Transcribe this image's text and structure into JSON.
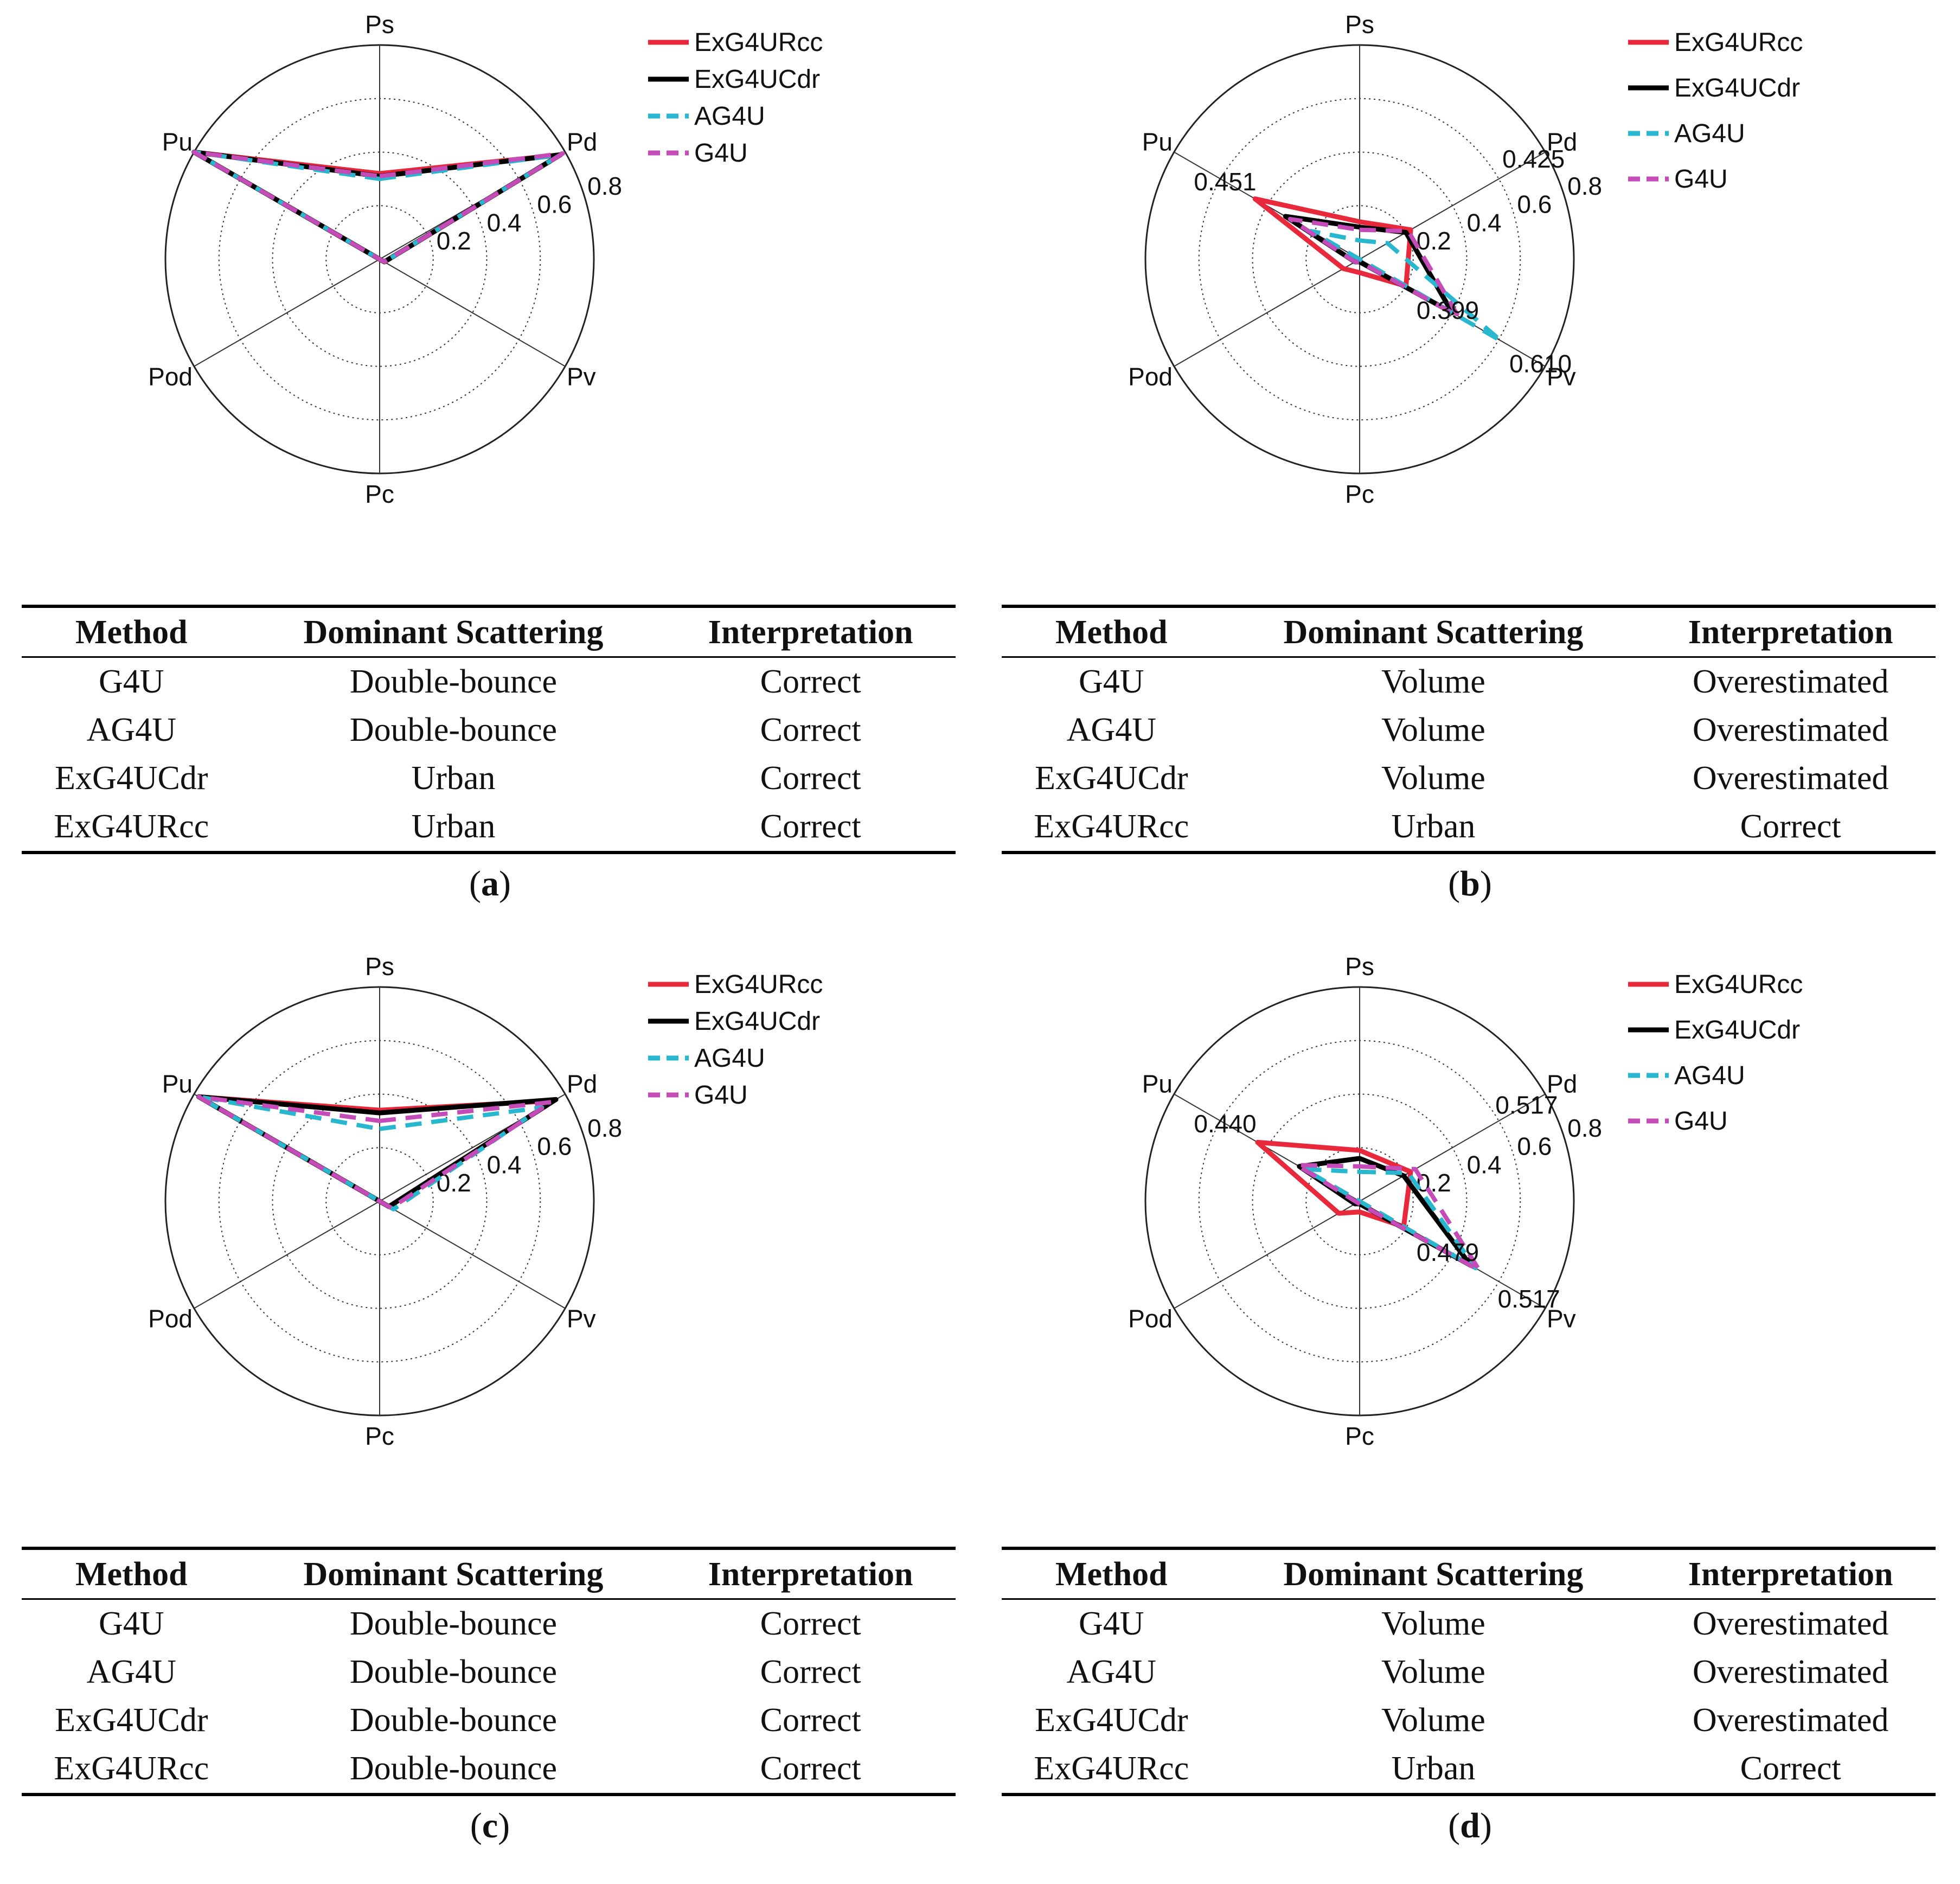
{
  "chart_data": [
    {
      "type": "radar",
      "axes": [
        "Ps",
        "Pd",
        "Pv",
        "Pc",
        "Pod",
        "Pu"
      ],
      "rlim": [
        0,
        0.8
      ],
      "rticks": [
        0.2,
        0.4,
        0.6,
        0.8
      ],
      "grid": true,
      "legend_position": "top-right",
      "series": [
        {
          "name": "ExG4URcc",
          "color": "#e8283b",
          "dash": "solid",
          "values": [
            0.32,
            0.78,
            0.02,
            0.0,
            0.0,
            0.8
          ]
        },
        {
          "name": "ExG4UCdr",
          "color": "#000000",
          "dash": "solid",
          "values": [
            0.31,
            0.78,
            0.02,
            0.0,
            0.0,
            0.8
          ]
        },
        {
          "name": "AG4U",
          "color": "#29b6cf",
          "dash": "dashed",
          "values": [
            0.3,
            0.78,
            0.02,
            0.0,
            0.0,
            0.8
          ]
        },
        {
          "name": "G4U",
          "color": "#c44bb8",
          "dash": "dashed",
          "values": [
            0.31,
            0.79,
            0.02,
            0.0,
            0.0,
            0.8
          ]
        }
      ],
      "annotations": [],
      "table": {
        "headers": [
          "Method",
          "Dominant Scattering",
          "Interpretation"
        ],
        "rows": [
          [
            "G4U",
            "Double-bounce",
            "Correct"
          ],
          [
            "AG4U",
            "Double-bounce",
            "Correct"
          ],
          [
            "ExG4UCdr",
            "Urban",
            "Correct"
          ],
          [
            "ExG4URcc",
            "Urban",
            "Correct"
          ]
        ]
      },
      "caption": "a"
    },
    {
      "type": "radar",
      "axes": [
        "Ps",
        "Pd",
        "Pv",
        "Pc",
        "Pod",
        "Pu"
      ],
      "rlim": [
        0,
        0.8
      ],
      "rticks": [
        0.2,
        0.4,
        0.6,
        0.8
      ],
      "grid": true,
      "legend_position": "top-right",
      "series": [
        {
          "name": "ExG4URcc",
          "color": "#e8283b",
          "dash": "solid",
          "values": [
            0.14,
            0.22,
            0.2,
            0.05,
            0.07,
            0.451
          ]
        },
        {
          "name": "ExG4UCdr",
          "color": "#000000",
          "dash": "solid",
          "values": [
            0.12,
            0.2,
            0.399,
            0.01,
            0.02,
            0.32
          ]
        },
        {
          "name": "AG4U",
          "color": "#29b6cf",
          "dash": "dashed",
          "values": [
            0.07,
            0.12,
            0.61,
            0.0,
            0.0,
            0.21
          ]
        },
        {
          "name": "G4U",
          "color": "#c44bb8",
          "dash": "dashed",
          "values": [
            0.11,
            0.21,
            0.425,
            0.01,
            0.02,
            0.3
          ]
        }
      ],
      "annotations": [
        {
          "text": "0.451",
          "axis": "Pu",
          "r": 0.58
        },
        {
          "text": "0.425",
          "axis": "Pd",
          "r": 0.75
        },
        {
          "text": "0.399",
          "axis": "Pv",
          "r": 0.38
        },
        {
          "text": "0.610",
          "axis": "Pv",
          "r": 0.78
        }
      ],
      "table": {
        "headers": [
          "Method",
          "Dominant Scattering",
          "Interpretation"
        ],
        "rows": [
          [
            "G4U",
            "Volume",
            "Overestimated"
          ],
          [
            "AG4U",
            "Volume",
            "Overestimated"
          ],
          [
            "ExG4UCdr",
            "Volume",
            "Overestimated"
          ],
          [
            "ExG4URcc",
            "Urban",
            "Correct"
          ]
        ]
      },
      "caption": "b"
    },
    {
      "type": "radar",
      "axes": [
        "Ps",
        "Pd",
        "Pv",
        "Pc",
        "Pod",
        "Pu"
      ],
      "rlim": [
        0,
        0.8
      ],
      "rticks": [
        0.2,
        0.4,
        0.6,
        0.8
      ],
      "grid": true,
      "legend_position": "top-right",
      "series": [
        {
          "name": "ExG4URcc",
          "color": "#e8283b",
          "dash": "solid",
          "values": [
            0.34,
            0.75,
            0.04,
            0.0,
            0.0,
            0.78
          ]
        },
        {
          "name": "ExG4UCdr",
          "color": "#000000",
          "dash": "solid",
          "values": [
            0.33,
            0.76,
            0.04,
            0.0,
            0.0,
            0.78
          ]
        },
        {
          "name": "AG4U",
          "color": "#29b6cf",
          "dash": "dashed",
          "values": [
            0.27,
            0.7,
            0.06,
            0.0,
            0.0,
            0.78
          ]
        },
        {
          "name": "G4U",
          "color": "#c44bb8",
          "dash": "dashed",
          "values": [
            0.3,
            0.74,
            0.05,
            0.0,
            0.0,
            0.78
          ]
        }
      ],
      "annotations": [],
      "table": {
        "headers": [
          "Method",
          "Dominant Scattering",
          "Interpretation"
        ],
        "rows": [
          [
            "G4U",
            "Double-bounce",
            "Correct"
          ],
          [
            "AG4U",
            "Double-bounce",
            "Correct"
          ],
          [
            "ExG4UCdr",
            "Double-bounce",
            "Correct"
          ],
          [
            "ExG4URcc",
            "Double-bounce",
            "Correct"
          ]
        ]
      },
      "caption": "c"
    },
    {
      "type": "radar",
      "axes": [
        "Ps",
        "Pd",
        "Pv",
        "Pc",
        "Pod",
        "Pu"
      ],
      "rlim": [
        0,
        0.8
      ],
      "rticks": [
        0.2,
        0.4,
        0.6,
        0.8
      ],
      "grid": true,
      "legend_position": "top-right",
      "series": [
        {
          "name": "ExG4URcc",
          "color": "#e8283b",
          "dash": "solid",
          "values": [
            0.19,
            0.22,
            0.19,
            0.04,
            0.09,
            0.44
          ]
        },
        {
          "name": "ExG4UCdr",
          "color": "#000000",
          "dash": "solid",
          "values": [
            0.16,
            0.19,
            0.479,
            0.01,
            0.02,
            0.26
          ]
        },
        {
          "name": "AG4U",
          "color": "#29b6cf",
          "dash": "dashed",
          "values": [
            0.11,
            0.21,
            0.5,
            0.0,
            0.0,
            0.24
          ]
        },
        {
          "name": "G4U",
          "color": "#c44bb8",
          "dash": "dashed",
          "values": [
            0.13,
            0.24,
            0.517,
            0.01,
            0.01,
            0.27
          ]
        }
      ],
      "annotations": [
        {
          "text": "0.440",
          "axis": "Pu",
          "r": 0.58
        },
        {
          "text": "0.517",
          "axis": "Pd",
          "r": 0.72
        },
        {
          "text": "0.479",
          "axis": "Pv",
          "r": 0.38
        },
        {
          "text": "0.517",
          "axis": "Pv",
          "r": 0.73
        }
      ],
      "table": {
        "headers": [
          "Method",
          "Dominant Scattering",
          "Interpretation"
        ],
        "rows": [
          [
            "G4U",
            "Volume",
            "Overestimated"
          ],
          [
            "AG4U",
            "Volume",
            "Overestimated"
          ],
          [
            "ExG4UCdr",
            "Volume",
            "Overestimated"
          ],
          [
            "ExG4URcc",
            "Urban",
            "Correct"
          ]
        ]
      },
      "caption": "d"
    }
  ]
}
